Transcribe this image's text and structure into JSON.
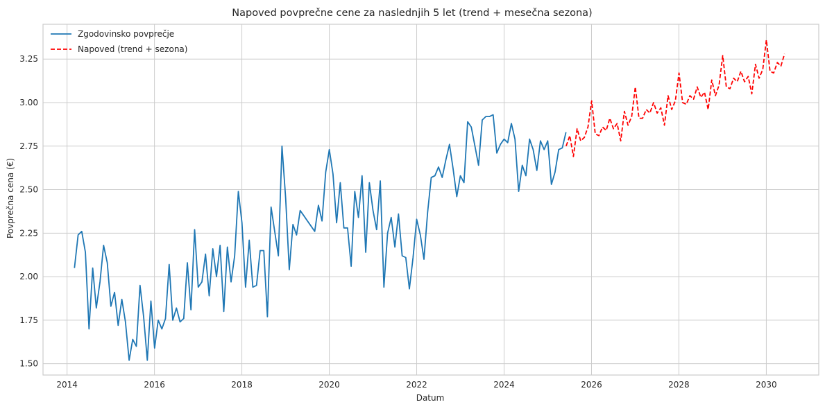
{
  "chart_data": {
    "type": "line",
    "title": "Napoved povprečne cene za naslednjih 5 let (trend + mesečna sezona)",
    "xlabel": "Datum",
    "ylabel": "Povprečna cena (€)",
    "xlim": [
      2013.45,
      2031.2
    ],
    "ylim": [
      1.435,
      3.45
    ],
    "x_ticks": [
      2014,
      2016,
      2018,
      2020,
      2022,
      2024,
      2026,
      2028,
      2030
    ],
    "y_ticks": [
      1.5,
      1.75,
      2.0,
      2.25,
      2.5,
      2.75,
      3.0,
      3.25
    ],
    "grid": true,
    "legend_position": "top-left",
    "series": [
      {
        "name": "Zgodovinsko povprečje",
        "color": "#1f77b4",
        "style": "solid",
        "x_start": 2014.17,
        "x_step": 0.0833,
        "values": [
          2.05,
          2.24,
          2.26,
          2.14,
          1.7,
          2.05,
          1.82,
          1.97,
          2.18,
          2.08,
          1.83,
          1.91,
          1.72,
          1.87,
          1.74,
          1.52,
          1.64,
          1.6,
          1.95,
          1.77,
          1.52,
          1.86,
          1.59,
          1.75,
          1.7,
          1.76,
          2.07,
          1.75,
          1.82,
          1.74,
          1.76,
          2.08,
          1.81,
          2.27,
          1.94,
          1.97,
          2.13,
          1.89,
          2.16,
          2.0,
          2.18,
          1.8,
          2.17,
          1.97,
          2.12,
          2.49,
          2.31,
          1.94,
          2.21,
          1.94,
          1.95,
          2.15,
          2.15,
          1.77,
          2.4,
          2.26,
          2.12,
          2.75,
          2.45,
          2.04,
          2.3,
          2.24,
          2.38,
          2.35,
          2.32,
          2.29,
          2.26,
          2.41,
          2.32,
          2.6,
          2.73,
          2.59,
          2.31,
          2.54,
          2.28,
          2.28,
          2.06,
          2.49,
          2.34,
          2.58,
          2.14,
          2.54,
          2.38,
          2.27,
          2.55,
          1.94,
          2.25,
          2.34,
          2.17,
          2.36,
          2.12,
          2.11,
          1.93,
          2.11,
          2.33,
          2.24,
          2.1,
          2.37,
          2.57,
          2.58,
          2.63,
          2.57,
          2.67,
          2.76,
          2.62,
          2.46,
          2.58,
          2.54,
          2.89,
          2.86,
          2.75,
          2.64,
          2.9,
          2.92,
          2.92,
          2.93,
          2.71,
          2.76,
          2.79,
          2.77,
          2.88,
          2.79,
          2.49,
          2.64,
          2.58,
          2.79,
          2.73,
          2.61,
          2.78,
          2.73,
          2.78,
          2.53,
          2.6,
          2.73,
          2.74,
          2.83
        ]
      },
      {
        "name": "Napoved (trend + sezona)",
        "color": "#ff0000",
        "style": "dashed",
        "x_start": 2025.42,
        "x_step": 0.0833,
        "values": [
          2.75,
          2.81,
          2.69,
          2.85,
          2.78,
          2.8,
          2.86,
          3.01,
          2.82,
          2.81,
          2.86,
          2.84,
          2.91,
          2.85,
          2.88,
          2.78,
          2.95,
          2.87,
          2.92,
          3.09,
          2.91,
          2.91,
          2.96,
          2.94,
          3.0,
          2.94,
          2.97,
          2.87,
          3.04,
          2.96,
          3.01,
          3.17,
          3.0,
          2.99,
          3.04,
          3.02,
          3.09,
          3.03,
          3.06,
          2.96,
          3.13,
          3.04,
          3.1,
          3.27,
          3.09,
          3.08,
          3.14,
          3.12,
          3.18,
          3.12,
          3.15,
          3.05,
          3.22,
          3.14,
          3.19,
          3.36,
          3.18,
          3.17,
          3.23,
          3.21,
          3.28
        ]
      }
    ]
  }
}
